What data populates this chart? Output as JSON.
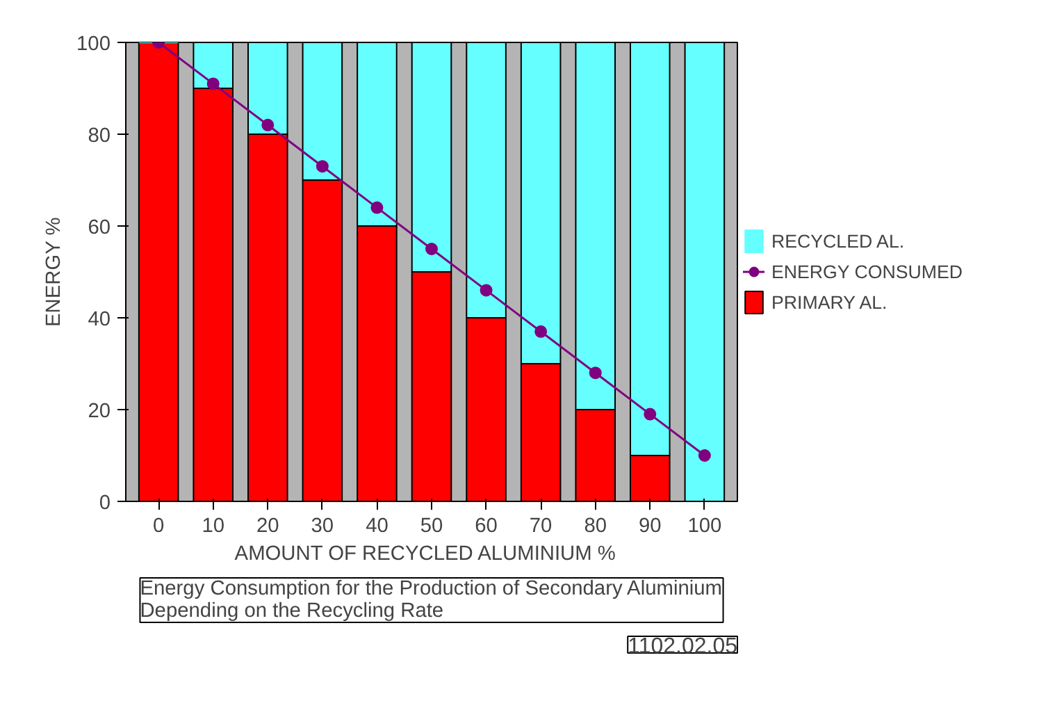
{
  "chart_data": {
    "type": "bar",
    "stacked": true,
    "categories": [
      "0",
      "10",
      "20",
      "30",
      "40",
      "50",
      "60",
      "70",
      "80",
      "90",
      "100"
    ],
    "series": [
      {
        "name": "PRIMARY AL.",
        "color": "#ff0000",
        "values": [
          100,
          90,
          80,
          70,
          60,
          50,
          40,
          30,
          20,
          10,
          0
        ]
      },
      {
        "name": "RECYCLED AL.",
        "color": "#66ffff",
        "values": [
          0,
          10,
          20,
          30,
          40,
          50,
          60,
          70,
          80,
          90,
          100
        ]
      },
      {
        "name": "ENERGY CONSUMED",
        "type": "line",
        "marker": "circle",
        "color": "#800080",
        "values": [
          100,
          91,
          82,
          73,
          64,
          55,
          46,
          37,
          28,
          19,
          10
        ]
      }
    ],
    "xlabel": "AMOUNT OF RECYCLED ALUMINIUM   %",
    "ylabel": "ENERGY %",
    "ylim": [
      0,
      100
    ],
    "yticks": [
      0,
      20,
      40,
      60,
      80,
      100
    ],
    "grid": false,
    "legend": "right",
    "annotations": [
      "Energy Consumption for the Production of Secondary Aluminium  Depending on the Recycling Rate",
      "1102.02.05"
    ]
  }
}
